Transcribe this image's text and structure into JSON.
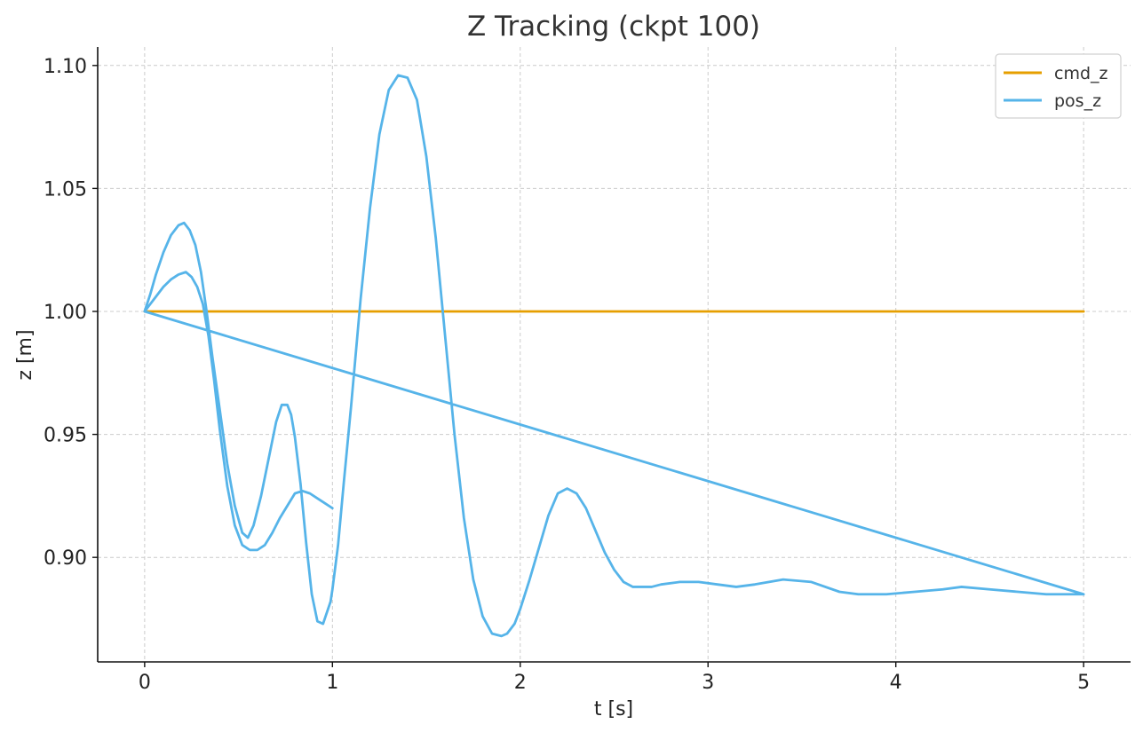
{
  "chart_data": {
    "type": "line",
    "title": "Z Tracking (ckpt 100)",
    "xlabel": "t [s]",
    "ylabel": "z [m]",
    "xlim": [
      -0.25,
      5.25
    ],
    "ylim": [
      0.8575,
      1.1075
    ],
    "xticks": [
      0,
      1,
      2,
      3,
      4,
      5
    ],
    "xtick_labels": [
      "0",
      "1",
      "2",
      "3",
      "4",
      "5"
    ],
    "yticks": [
      0.9,
      0.95,
      1.0,
      1.05,
      1.1
    ],
    "ytick_labels": [
      "0.90",
      "0.95",
      "1.00",
      "1.05",
      "1.10"
    ],
    "grid": true,
    "legend_position": "top-right",
    "series": [
      {
        "name": "cmd_z",
        "color": "#E69F00",
        "x": [
          0,
          5
        ],
        "y": [
          1.0,
          1.0
        ]
      },
      {
        "name": "pos_z",
        "color": "#56B4E9",
        "x": [
          0,
          0.03,
          0.06,
          0.1,
          0.14,
          0.18,
          0.21,
          0.24,
          0.27,
          0.3,
          0.33,
          0.36,
          0.4,
          0.44,
          0.48,
          0.52,
          0.55,
          0.58,
          0.62,
          0.66,
          0.7,
          0.73,
          0.76,
          0.78,
          0.8,
          0.83,
          0.86,
          0.89,
          0.92,
          0.95,
          0.99,
          1.0,
          1.03,
          1.06,
          1.1,
          1.15,
          1.2,
          1.25,
          1.3,
          1.35,
          1.4,
          1.45,
          1.5,
          1.55,
          1.6,
          1.65,
          1.7,
          1.75,
          1.8,
          1.85,
          1.9,
          1.93,
          1.97,
          2.0,
          2.05,
          2.1,
          2.15,
          2.2,
          2.25,
          2.3,
          2.35,
          2.4,
          2.45,
          2.5,
          2.55,
          2.6,
          2.65,
          2.7,
          2.75,
          2.85,
          2.95,
          3.05,
          3.15,
          3.25,
          3.4,
          3.55,
          3.7,
          3.8,
          3.95,
          4.1,
          4.25,
          4.35,
          4.5,
          4.65,
          4.8,
          5.0,
          4.0,
          3.0,
          2.0,
          1.0,
          0.0,
          0.03,
          0.06,
          0.1,
          0.14,
          0.18,
          0.22,
          0.25,
          0.28,
          0.31,
          0.34,
          0.37,
          0.4,
          0.44,
          0.48,
          0.52,
          0.56,
          0.6,
          0.64,
          0.68,
          0.72,
          0.76,
          0.8,
          0.84,
          0.88,
          0.92,
          0.96,
          1.0
        ],
        "y": [
          1.0,
          1.007,
          1.015,
          1.024,
          1.031,
          1.035,
          1.036,
          1.033,
          1.027,
          1.016,
          1.0,
          0.982,
          0.96,
          0.938,
          0.921,
          0.91,
          0.908,
          0.913,
          0.925,
          0.94,
          0.955,
          0.962,
          0.962,
          0.958,
          0.949,
          0.93,
          0.906,
          0.885,
          0.874,
          0.873,
          0.882,
          0.887,
          0.905,
          0.93,
          0.962,
          1.005,
          1.042,
          1.072,
          1.09,
          1.096,
          1.095,
          1.086,
          1.063,
          1.03,
          0.99,
          0.95,
          0.916,
          0.891,
          0.876,
          0.869,
          0.868,
          0.869,
          0.873,
          0.879,
          0.891,
          0.904,
          0.917,
          0.926,
          0.928,
          0.926,
          0.92,
          0.911,
          0.902,
          0.895,
          0.89,
          0.888,
          0.888,
          0.888,
          0.889,
          0.89,
          0.89,
          0.889,
          0.888,
          0.889,
          0.891,
          0.89,
          0.886,
          0.885,
          0.885,
          0.886,
          0.887,
          0.888,
          0.887,
          0.886,
          0.885,
          0.885,
          0.908,
          0.931,
          0.954,
          0.977,
          1.0,
          1.003,
          1.006,
          1.01,
          1.013,
          1.015,
          1.016,
          1.014,
          1.01,
          1.003,
          0.99,
          0.972,
          0.952,
          0.929,
          0.913,
          0.905,
          0.903,
          0.903,
          0.905,
          0.91,
          0.916,
          0.921,
          0.926,
          0.927,
          0.926,
          0.924,
          0.922,
          0.92
        ]
      }
    ]
  }
}
